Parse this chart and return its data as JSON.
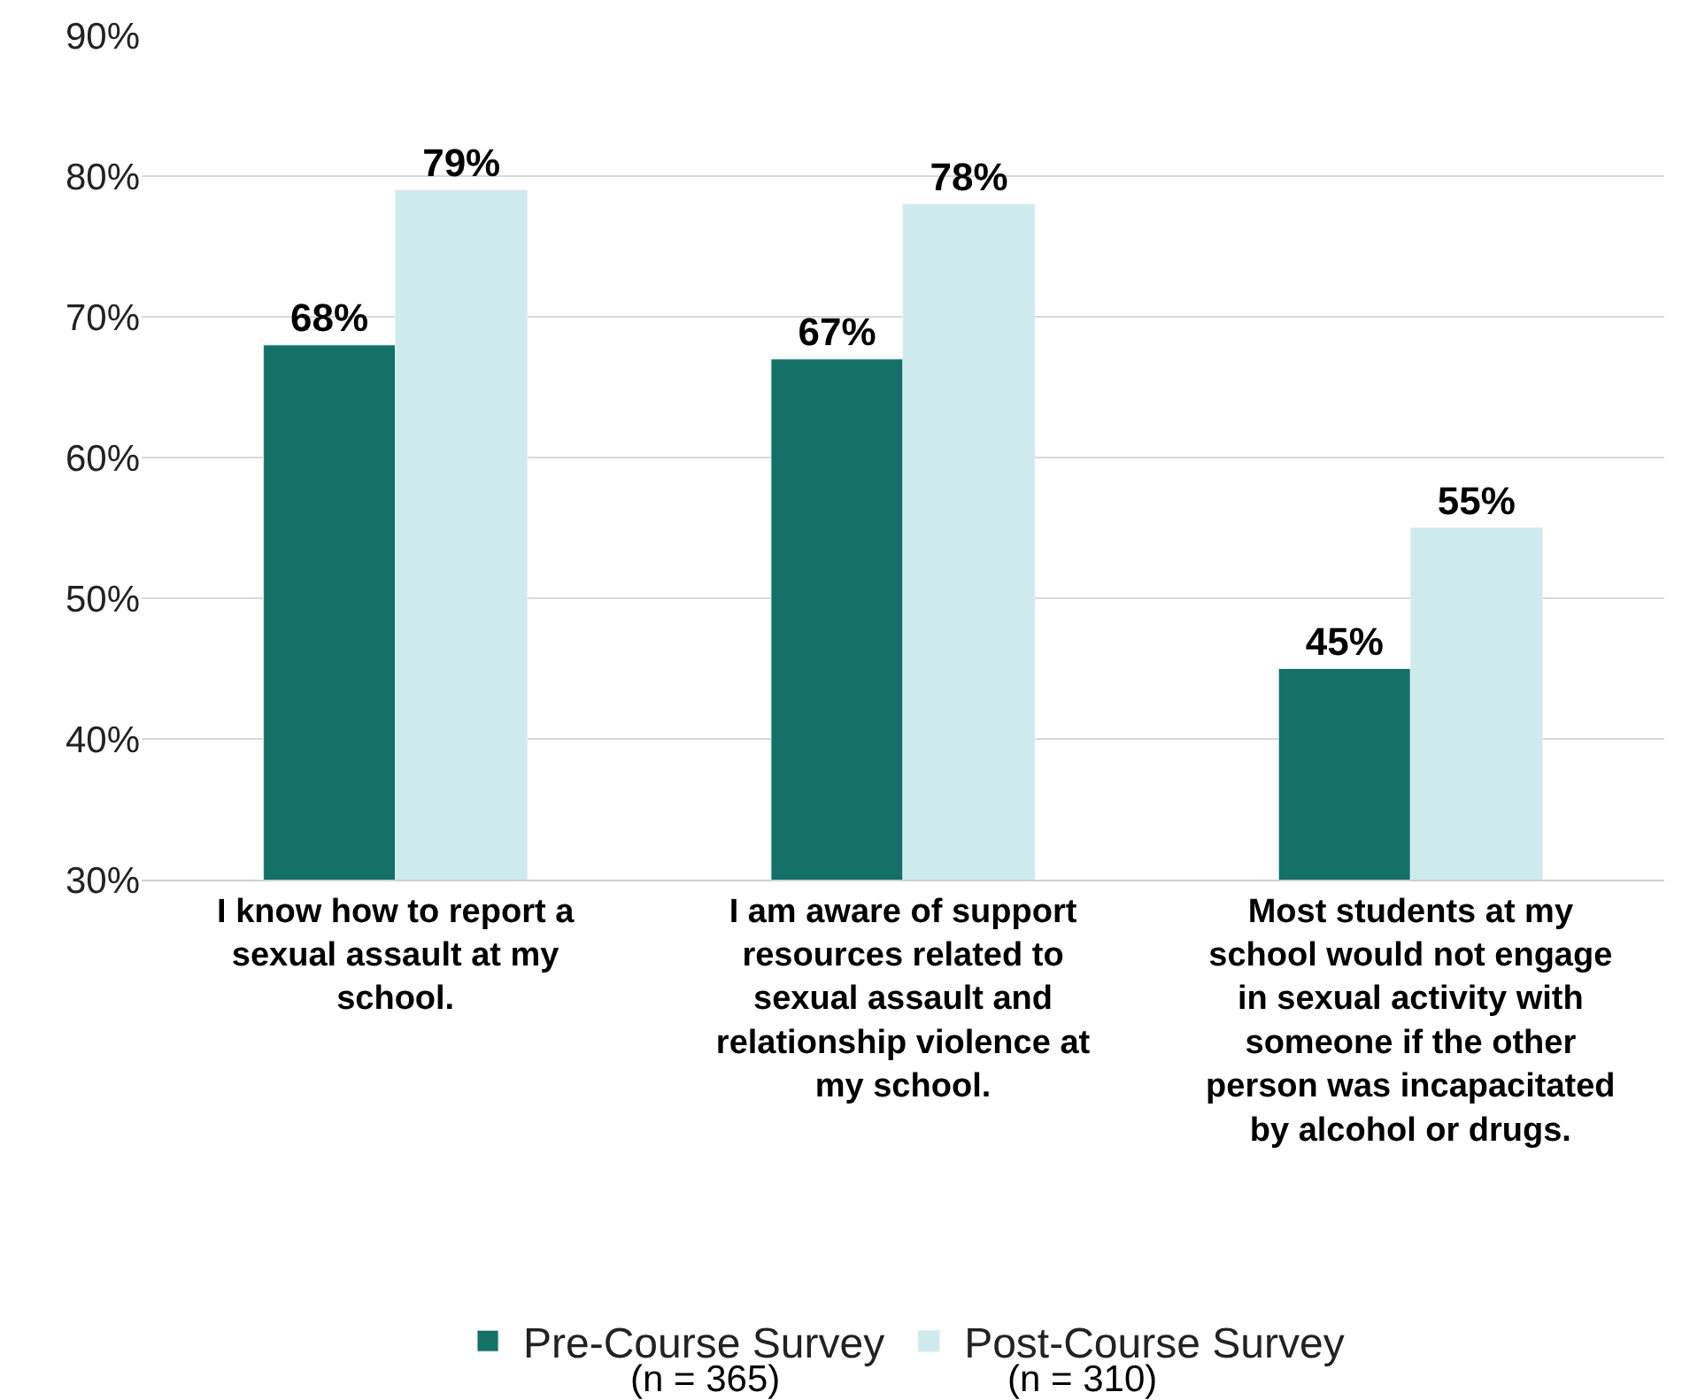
{
  "chart_data": {
    "type": "bar",
    "categories": [
      "I know how to report a sexual assault at my school.",
      "I am aware of support resources related to sexual assault and relationship violence at my school.",
      "Most students at my school would not engage in sexual activity with someone if the other person was incapacitated by alcohol or drugs."
    ],
    "series": [
      {
        "name": "Pre-Course Survey",
        "color": "#137167",
        "values": [
          68,
          67,
          45
        ],
        "value_labels": [
          "68%",
          "67%",
          "45%"
        ]
      },
      {
        "name": "Post-Course Survey",
        "color": "#cdebec",
        "values": [
          79,
          78,
          55
        ],
        "value_labels": [
          "79%",
          "78%",
          "55%"
        ]
      }
    ],
    "ylim": [
      30,
      90
    ],
    "yticks": [
      {
        "value": 30,
        "label": "30%"
      },
      {
        "value": 40,
        "label": "40%"
      },
      {
        "value": 50,
        "label": "50%"
      },
      {
        "value": 60,
        "label": "60%"
      },
      {
        "value": 70,
        "label": "70%"
      },
      {
        "value": 80,
        "label": "80%"
      },
      {
        "value": 90,
        "label": "90%"
      }
    ],
    "grid": "y",
    "legend": "bottom",
    "annotations": [
      "(n = 365)",
      "(n = 310)"
    ]
  }
}
